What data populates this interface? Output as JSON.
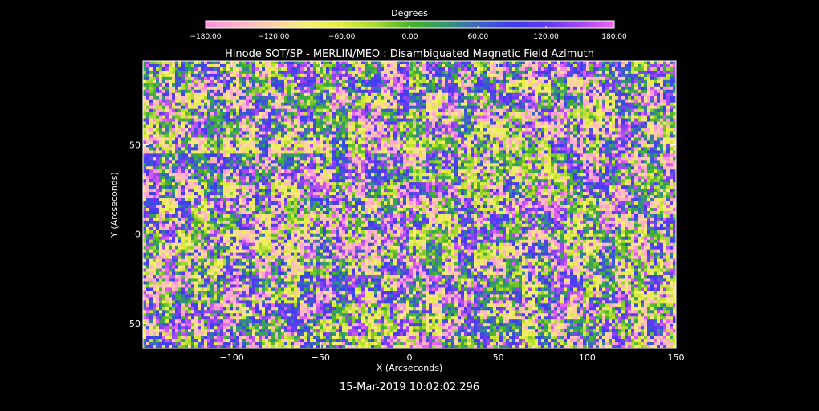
{
  "chart_data": {
    "type": "heatmap",
    "title": "Hinode SOT/SP - MERLIN/MEO : Disambiguated Magnetic Field Azimuth",
    "xlabel": "X (Arcseconds)",
    "ylabel": "Y (Arcseconds)",
    "xlim": [
      -150,
      150
    ],
    "ylim": [
      -64,
      97
    ],
    "x_ticks": [
      -100,
      -50,
      0,
      50,
      100,
      150
    ],
    "x_tick_labels": [
      "−100",
      "−50",
      "0",
      "50",
      "100",
      "150"
    ],
    "y_ticks": [
      -50,
      0,
      50
    ],
    "y_tick_labels": [
      "−50",
      "0",
      "50"
    ],
    "timestamp": "15-Mar-2019 10:02:02.296",
    "colorbar": {
      "title": "Degrees",
      "range": [
        -180,
        180
      ],
      "ticks": [
        -180,
        -120,
        -60,
        0,
        60,
        120,
        180
      ],
      "tick_labels": [
        "−180.00",
        "−120.00",
        "−60.00",
        "0.00",
        "60.00",
        "120.00",
        "180.00"
      ],
      "colors": [
        {
          "value": -180,
          "color": "#ff90e0"
        },
        {
          "value": -150,
          "color": "#ffb4c8"
        },
        {
          "value": -120,
          "color": "#ffd0a8"
        },
        {
          "value": -90,
          "color": "#f6f070"
        },
        {
          "value": -60,
          "color": "#e2ec40"
        },
        {
          "value": -30,
          "color": "#a8d830"
        },
        {
          "value": 0,
          "color": "#46b428"
        },
        {
          "value": 30,
          "color": "#329a6a"
        },
        {
          "value": 60,
          "color": "#3a64c8"
        },
        {
          "value": 90,
          "color": "#3c3cf0"
        },
        {
          "value": 120,
          "color": "#6038f4"
        },
        {
          "value": 150,
          "color": "#a448f4"
        },
        {
          "value": 180,
          "color": "#ee64f0"
        }
      ]
    },
    "image_description_values": "Noisy random azimuth field spanning the full -180 to 180 degree range over the whole map"
  }
}
